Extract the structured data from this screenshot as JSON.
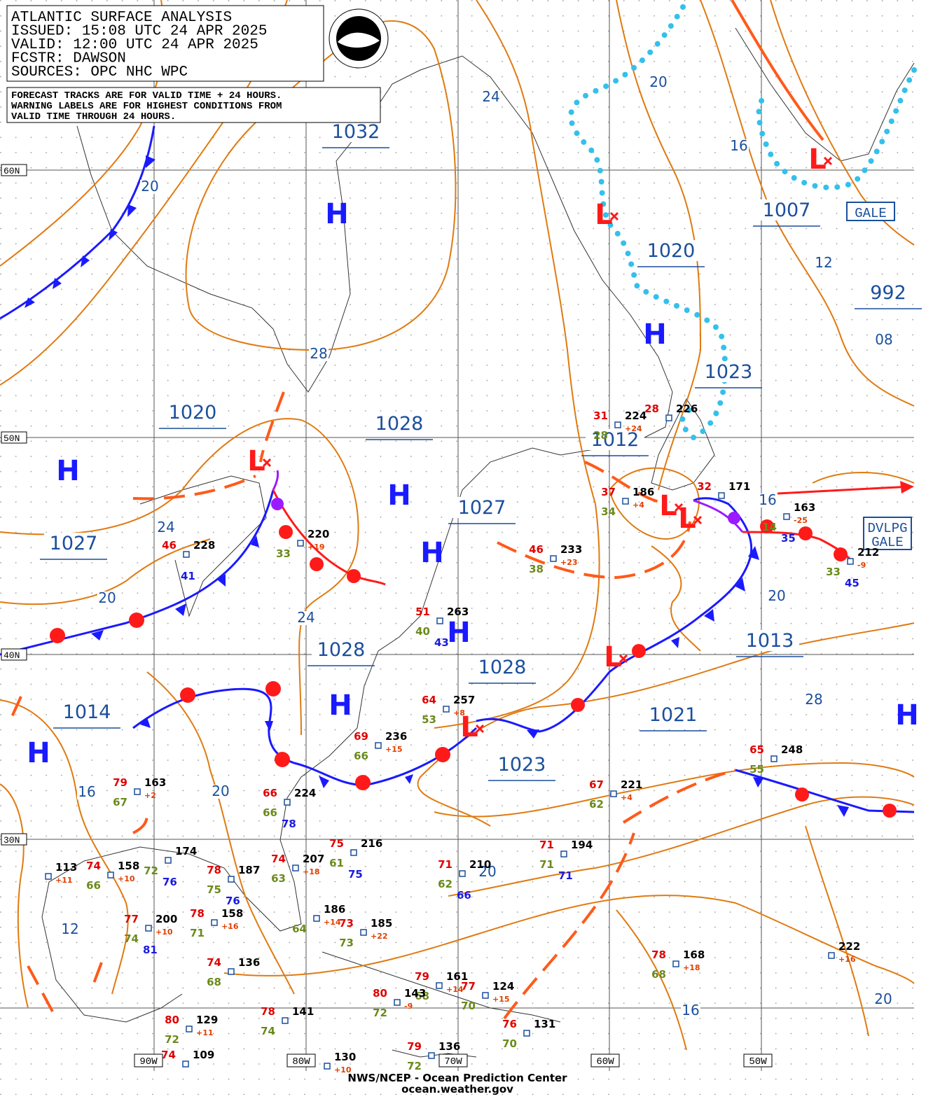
{
  "header": {
    "lines": [
      "ATLANTIC SURFACE ANALYSIS",
      "ISSUED: 15:08 UTC 24 APR 2025",
      "VALID:  12:00 UTC 24 APR 2025",
      "FCSTR:  DAWSON",
      "SOURCES: OPC NHC WPC"
    ]
  },
  "note": {
    "lines": [
      "FORECAST TRACKS ARE FOR VALID TIME + 24 HOURS.",
      "WARNING LABELS ARE FOR HIGHEST CONDITIONS FROM",
      "VALID TIME THROUGH 24 HOURS."
    ]
  },
  "grid": {
    "lat_labels": [
      "60N",
      "50N",
      "40N",
      "30N"
    ],
    "lon_labels": [
      "90W",
      "80W",
      "70W",
      "60W",
      "50W"
    ]
  },
  "symbols": {
    "high": "H",
    "low": "L"
  },
  "pressure_labels": [
    "1032",
    "1020",
    "1028",
    "1027",
    "1027",
    "1012",
    "1020",
    "1023",
    "1007",
    "992",
    "1028",
    "1028",
    "1014",
    "1021",
    "1013",
    "1023"
  ],
  "isobar_labels": [
    "24",
    "20",
    "28",
    "24",
    "20",
    "24",
    "20",
    "16",
    "12",
    "08",
    "16",
    "20",
    "28",
    "20",
    "16",
    "12",
    "20",
    "16",
    "20"
  ],
  "warnings": [
    {
      "lines": [
        "GALE"
      ]
    },
    {
      "lines": [
        "DVLPG",
        "GALE"
      ]
    }
  ],
  "stations": [
    {
      "pres": "224",
      "temp": "31",
      "dew": "28",
      "tend": "+24"
    },
    {
      "pres": "226",
      "temp": "28"
    },
    {
      "pres": "186",
      "temp": "37",
      "dew": "34",
      "tend": "+4"
    },
    {
      "pres": "171",
      "temp": "32"
    },
    {
      "pres": "163",
      "dew": "14",
      "tend": "-25",
      "other": "35"
    },
    {
      "pres": "212",
      "dew": "33",
      "tend": "-9",
      "other": "45"
    },
    {
      "pres": "220",
      "dew": "33",
      "tend": "+19"
    },
    {
      "pres": "228",
      "temp": "46",
      "other": "41"
    },
    {
      "pres": "233",
      "temp": "46",
      "dew": "38",
      "tend": "+23"
    },
    {
      "pres": "263",
      "temp": "51",
      "dew": "40",
      "other": "43"
    },
    {
      "pres": "257",
      "temp": "64",
      "dew": "53",
      "tend": "+8"
    },
    {
      "pres": "236",
      "temp": "69",
      "dew": "66",
      "tend": "+15"
    },
    {
      "pres": "224",
      "temp": "66",
      "dew": "66",
      "other": "78"
    },
    {
      "pres": "163",
      "temp": "79",
      "dew": "67",
      "tend": "+2"
    },
    {
      "pres": "113",
      "tend": "+11"
    },
    {
      "pres": "158",
      "temp": "74",
      "dew": "66",
      "tend": "+10"
    },
    {
      "pres": "174",
      "dew": "72",
      "other": "76"
    },
    {
      "pres": "187",
      "temp": "78",
      "dew": "75",
      "other": "76"
    },
    {
      "pres": "207",
      "temp": "74",
      "dew": "63",
      "tend": "+18"
    },
    {
      "pres": "216",
      "temp": "75",
      "dew": "61",
      "other": "75"
    },
    {
      "pres": "200",
      "temp": "77",
      "dew": "74",
      "tend": "+10",
      "other": "81"
    },
    {
      "pres": "158",
      "temp": "78",
      "dew": "71",
      "tend": "+16"
    },
    {
      "pres": "186",
      "dew": "64",
      "tend": "+14"
    },
    {
      "pres": "185",
      "temp": "73",
      "dew": "73",
      "tend": "+22"
    },
    {
      "pres": "210",
      "temp": "71",
      "dew": "62",
      "other": "66"
    },
    {
      "pres": "194",
      "temp": "71",
      "dew": "71",
      "other": "71"
    },
    {
      "pres": "221",
      "temp": "67",
      "dew": "62",
      "tend": "+4"
    },
    {
      "pres": "248",
      "temp": "65",
      "dew": "55"
    },
    {
      "pres": "136",
      "temp": "74",
      "dew": "68"
    },
    {
      "pres": "161",
      "temp": "79",
      "dew": "68",
      "tend": "+14"
    },
    {
      "pres": "124",
      "temp": "77",
      "dew": "70",
      "tend": "+15"
    },
    {
      "pres": "143",
      "temp": "80",
      "dew": "72",
      "tend": "-9"
    },
    {
      "pres": "141",
      "temp": "78",
      "dew": "74"
    },
    {
      "pres": "129",
      "temp": "80",
      "dew": "72",
      "tend": "+11"
    },
    {
      "pres": "131",
      "temp": "76",
      "dew": "70"
    },
    {
      "pres": "130",
      "tend": "+10"
    },
    {
      "pres": "136",
      "temp": "79",
      "dew": "72"
    },
    {
      "pres": "109",
      "temp": "74"
    },
    {
      "pres": "168",
      "temp": "78",
      "dew": "68",
      "tend": "+18"
    },
    {
      "pres": "222",
      "tend": "+16"
    }
  ],
  "footer": {
    "lines": [
      "NWS/NCEP - Ocean Prediction Center",
      "ocean.weather.gov"
    ]
  }
}
